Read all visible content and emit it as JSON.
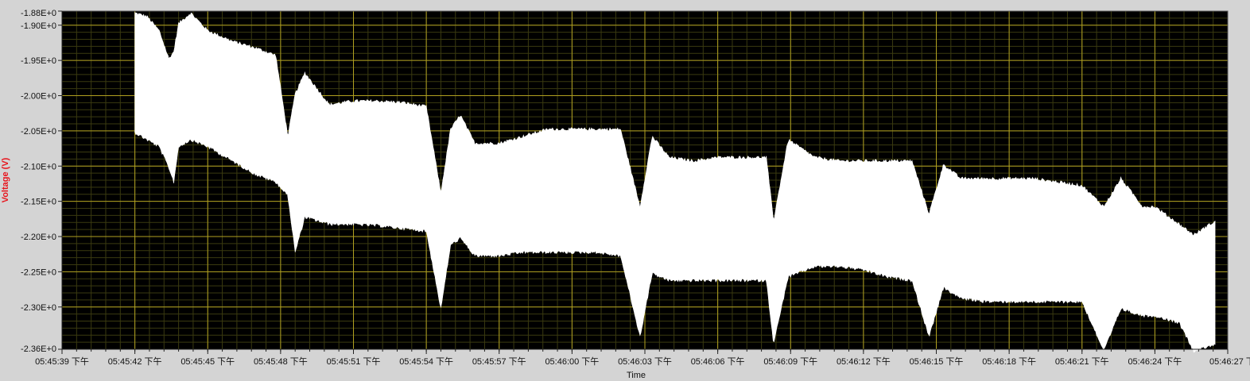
{
  "chart_data": {
    "type": "area",
    "title": "",
    "xlabel": "Time",
    "ylabel": "Voltage (V)",
    "ylim": [
      -2.36,
      -1.88
    ],
    "xlim": [
      "05:45:39",
      "05:46:27"
    ],
    "y_ticks": [
      "-1.88E+0",
      "-1.90E+0",
      "-1.95E+0",
      "-2.00E+0",
      "-2.05E+0",
      "-2.10E+0",
      "-2.15E+0",
      "-2.20E+0",
      "-2.25E+0",
      "-2.30E+0",
      "-2.36E+0"
    ],
    "x_ticks": [
      "05:45:39 下午",
      "05:45:42 下午",
      "05:45:45 下午",
      "05:45:48 下午",
      "05:45:51 下午",
      "05:45:54 下午",
      "05:45:57 下午",
      "05:46:00 下午",
      "05:46:03 下午",
      "05:46:06 下午",
      "05:46:09 下午",
      "05:46:12 下午",
      "05:46:15 下午",
      "05:46:18 下午",
      "05:46:21 下午",
      "05:46:24 下午",
      "05:46:27 下午"
    ],
    "grid": true,
    "background": "#000000",
    "grid_color": "#b0a020",
    "minor_grid_color": "#3a3a10",
    "ylabel_color": "#e8141c",
    "series": [
      {
        "color": "#ffffff",
        "x": [
          "05:45:42.0",
          "05:45:42.5",
          "05:45:43.0",
          "05:45:43.4",
          "05:45:43.6",
          "05:45:43.8",
          "05:45:44.3",
          "05:45:45.0",
          "05:45:46.0",
          "05:45:47.0",
          "05:45:47.8",
          "05:45:48.3",
          "05:45:48.6",
          "05:45:49.0",
          "05:45:50.0",
          "05:45:51.0",
          "05:45:52.0",
          "05:45:53.0",
          "05:45:54.0",
          "05:45:54.6",
          "05:45:55.0",
          "05:45:55.4",
          "05:45:56.0",
          "05:45:57.0",
          "05:45:58.0",
          "05:45:59.0",
          "05:46:00.0",
          "05:46:01.0",
          "05:46:02.0",
          "05:46:02.8",
          "05:46:03.3",
          "05:46:04.0",
          "05:46:05.0",
          "05:46:06.0",
          "05:46:07.0",
          "05:46:08.0",
          "05:46:08.3",
          "05:46:08.9",
          "05:46:10.0",
          "05:46:11.0",
          "05:46:12.0",
          "05:46:13.0",
          "05:46:14.0",
          "05:46:14.7",
          "05:46:15.3",
          "05:46:16.0",
          "05:46:17.0",
          "05:46:18.0",
          "05:46:19.0",
          "05:46:20.0",
          "05:46:21.0",
          "05:46:21.9",
          "05:46:22.6",
          "05:46:23.5",
          "05:46:24.0",
          "05:46:25.0",
          "05:46:25.6",
          "05:46:26.5"
        ],
        "upper": [
          -1.885,
          -1.89,
          -1.91,
          -1.95,
          -1.94,
          -1.9,
          -1.885,
          -1.91,
          -1.925,
          -1.935,
          -1.945,
          -2.06,
          -2.0,
          -1.97,
          -2.015,
          -2.01,
          -2.01,
          -2.012,
          -2.018,
          -2.14,
          -2.05,
          -2.03,
          -2.07,
          -2.07,
          -2.06,
          -2.05,
          -2.05,
          -2.05,
          -2.05,
          -2.16,
          -2.06,
          -2.09,
          -2.095,
          -2.09,
          -2.09,
          -2.09,
          -2.18,
          -2.065,
          -2.09,
          -2.095,
          -2.095,
          -2.095,
          -2.095,
          -2.17,
          -2.1,
          -2.12,
          -2.12,
          -2.12,
          -2.12,
          -2.125,
          -2.13,
          -2.16,
          -2.12,
          -2.16,
          -2.16,
          -2.185,
          -2.2,
          -2.18
        ],
        "lower": [
          -2.05,
          -2.06,
          -2.07,
          -2.1,
          -2.12,
          -2.07,
          -2.06,
          -2.07,
          -2.09,
          -2.11,
          -2.12,
          -2.14,
          -2.22,
          -2.17,
          -2.18,
          -2.18,
          -2.182,
          -2.186,
          -2.19,
          -2.3,
          -2.21,
          -2.2,
          -2.225,
          -2.225,
          -2.22,
          -2.22,
          -2.22,
          -2.22,
          -2.225,
          -2.34,
          -2.25,
          -2.26,
          -2.26,
          -2.26,
          -2.26,
          -2.26,
          -2.35,
          -2.255,
          -2.24,
          -2.24,
          -2.245,
          -2.255,
          -2.26,
          -2.34,
          -2.27,
          -2.285,
          -2.29,
          -2.29,
          -2.29,
          -2.29,
          -2.29,
          -2.36,
          -2.3,
          -2.31,
          -2.31,
          -2.32,
          -2.36,
          -2.35
        ]
      }
    ]
  }
}
